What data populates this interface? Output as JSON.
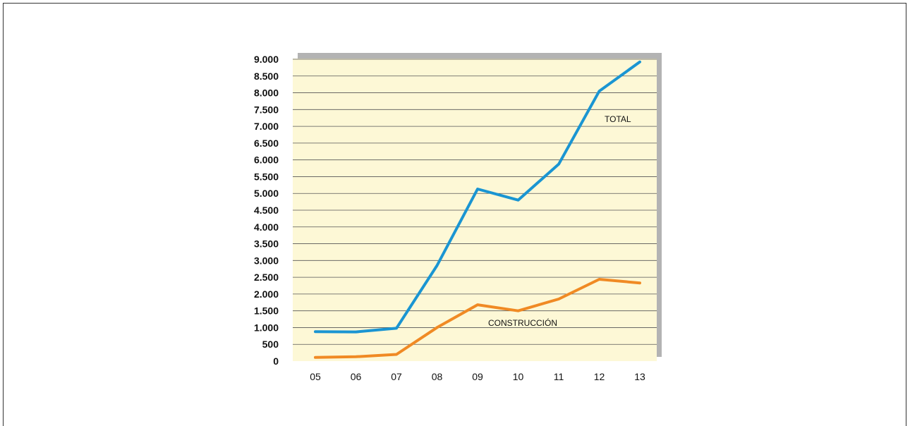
{
  "chart_data": {
    "type": "line",
    "title": "",
    "xlabel": "",
    "ylabel": "",
    "categories": [
      "05",
      "06",
      "07",
      "08",
      "09",
      "10",
      "11",
      "12",
      "13"
    ],
    "series": [
      {
        "name": "TOTAL",
        "values": [
          880,
          870,
          980,
          2850,
          5130,
          4800,
          5870,
          8050,
          8920
        ],
        "color": "#1a95d2"
      },
      {
        "name": "CONSTRUCCIÓN",
        "values": [
          110,
          130,
          200,
          1000,
          1680,
          1500,
          1850,
          2440,
          2330
        ],
        "color": "#f08a24"
      }
    ],
    "ylim": [
      0,
      9000
    ],
    "yticks": [
      0,
      500,
      1000,
      1500,
      2000,
      2500,
      3000,
      3500,
      4000,
      4500,
      5000,
      5500,
      6000,
      6500,
      7000,
      7500,
      8000,
      8500,
      9000
    ],
    "ytick_labels": [
      "0",
      "500",
      "1.000",
      "1.500",
      "2.000",
      "2.500",
      "3.000",
      "3.500",
      "4.000",
      "4.500",
      "5.000",
      "5.500",
      "6.000",
      "6.500",
      "7.000",
      "7.500",
      "8.000",
      "8.500",
      "9.000"
    ],
    "grid": true,
    "legend": "inline labels near lines",
    "colors": {
      "plot_background": "#fdf8d6",
      "shadow": "#b3b3b3",
      "grid": "#555555"
    }
  }
}
